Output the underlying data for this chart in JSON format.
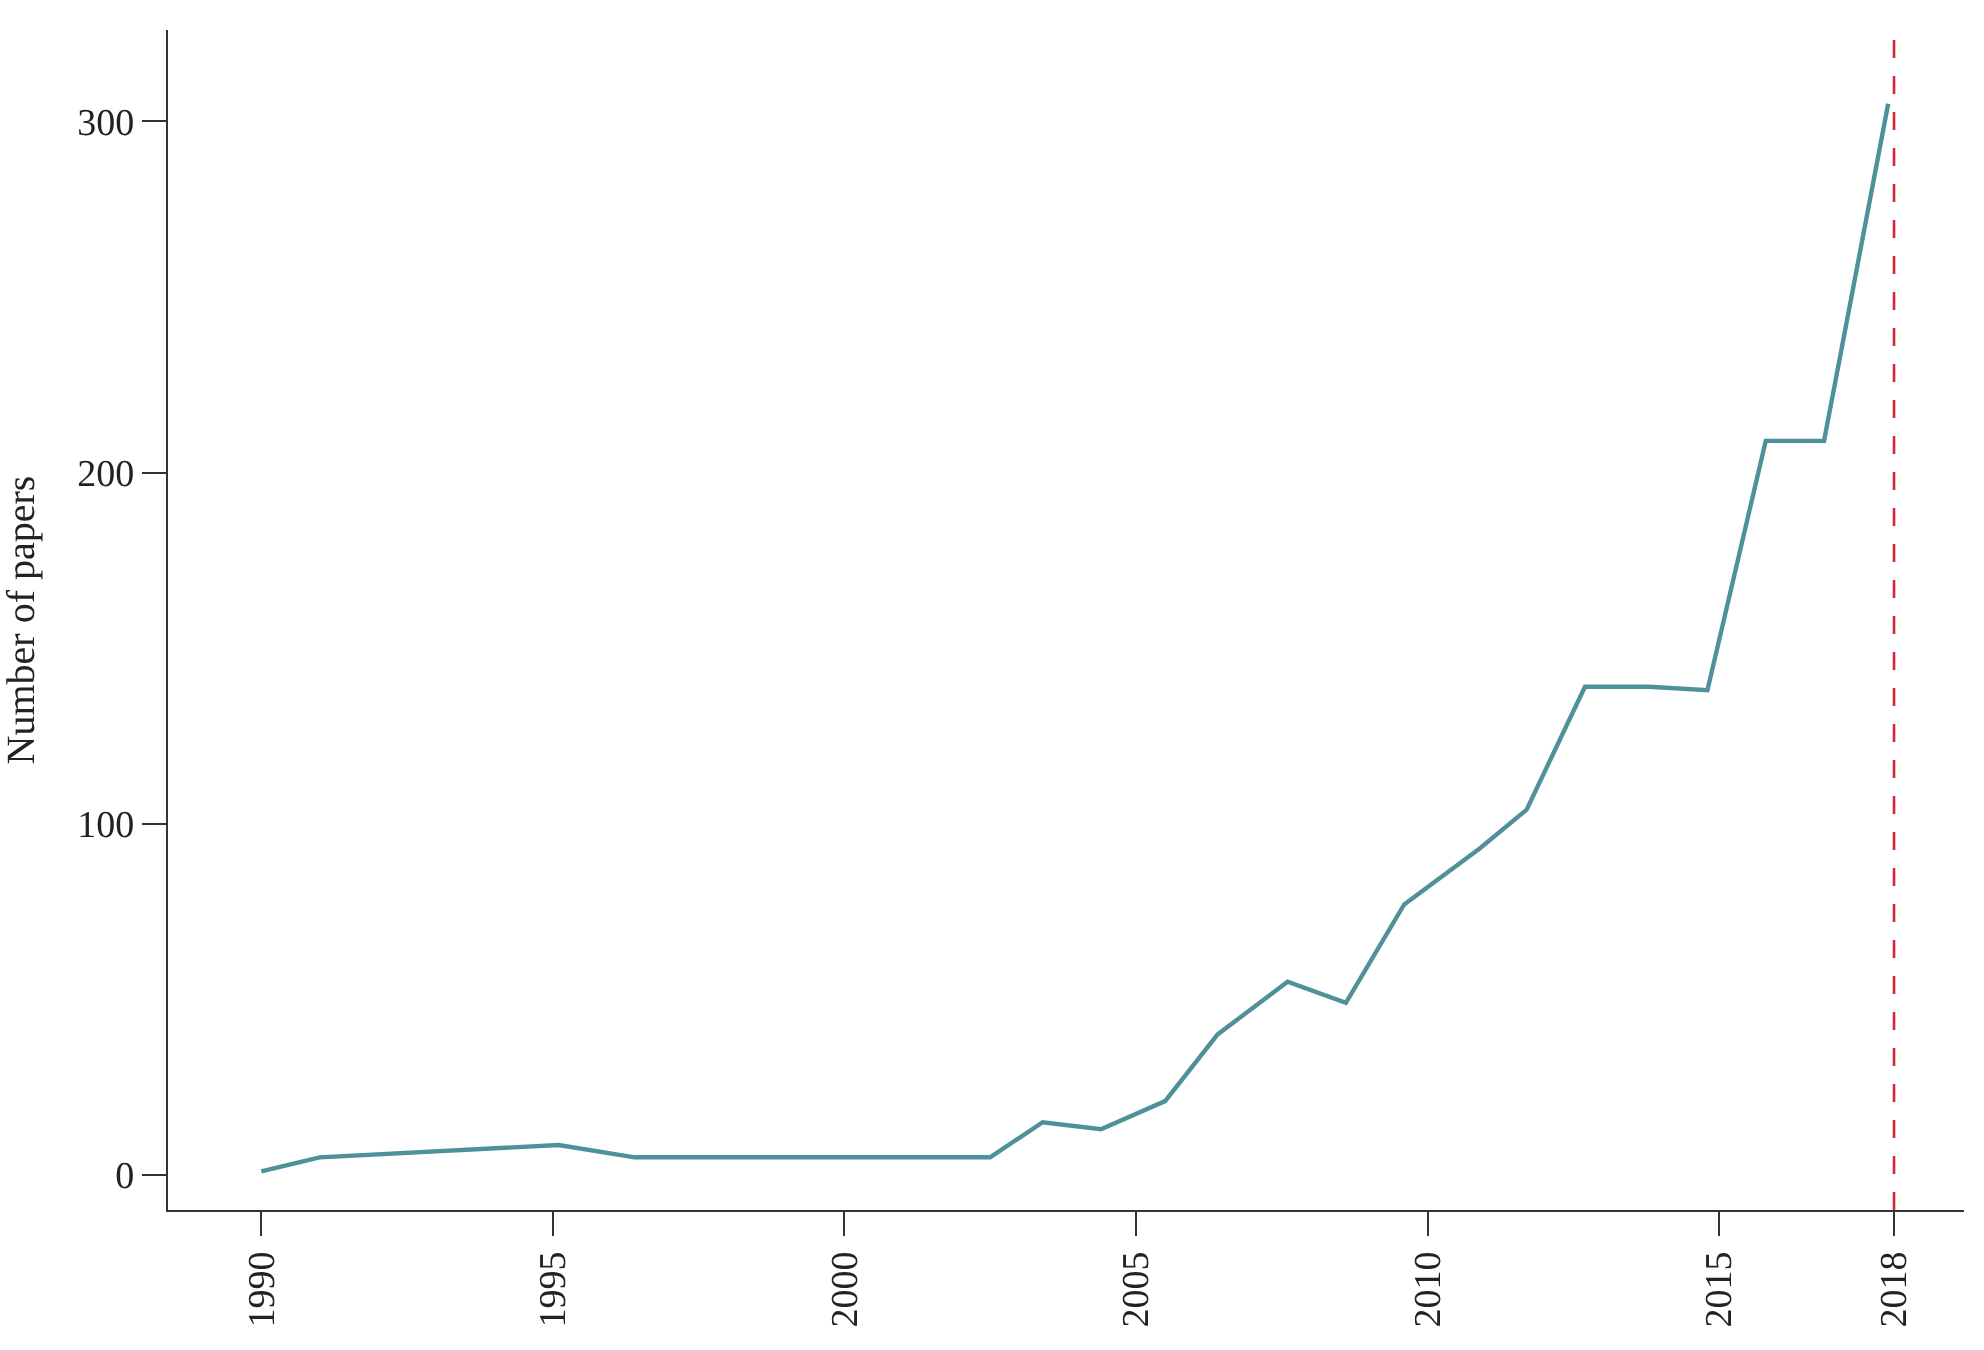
{
  "chart_data": {
    "type": "line",
    "ylabel": "Number of papers",
    "x": [
      1990,
      1991,
      1995.1,
      1996.4,
      2002.5,
      2003.4,
      2004.4,
      2005.5,
      2006.4,
      2007.6,
      2008.6,
      2009.6,
      2010.9,
      2011.7,
      2012.7,
      2013.8,
      2014.8,
      2015.8,
      2016.8,
      2017.9
    ],
    "series": [
      {
        "color": "#4f9199",
        "values": [
          1,
          5,
          8.5,
          5,
          5,
          15,
          13,
          21,
          40,
          55,
          49,
          77,
          93,
          104,
          139,
          139,
          138,
          209,
          209,
          305
        ]
      }
    ],
    "xlim": [
      1988.4,
      2019.2
    ],
    "xticks": [
      1990,
      1995,
      2000,
      2005,
      2010,
      2015,
      2018
    ],
    "ylim": [
      -10,
      326
    ],
    "yticks": [
      0,
      100,
      200,
      300
    ],
    "ref_lines": [
      {
        "axis": "x",
        "value": 2018,
        "color": "#d62839",
        "line_style": "dashed"
      }
    ],
    "marker": "none",
    "line_style": "solid"
  }
}
